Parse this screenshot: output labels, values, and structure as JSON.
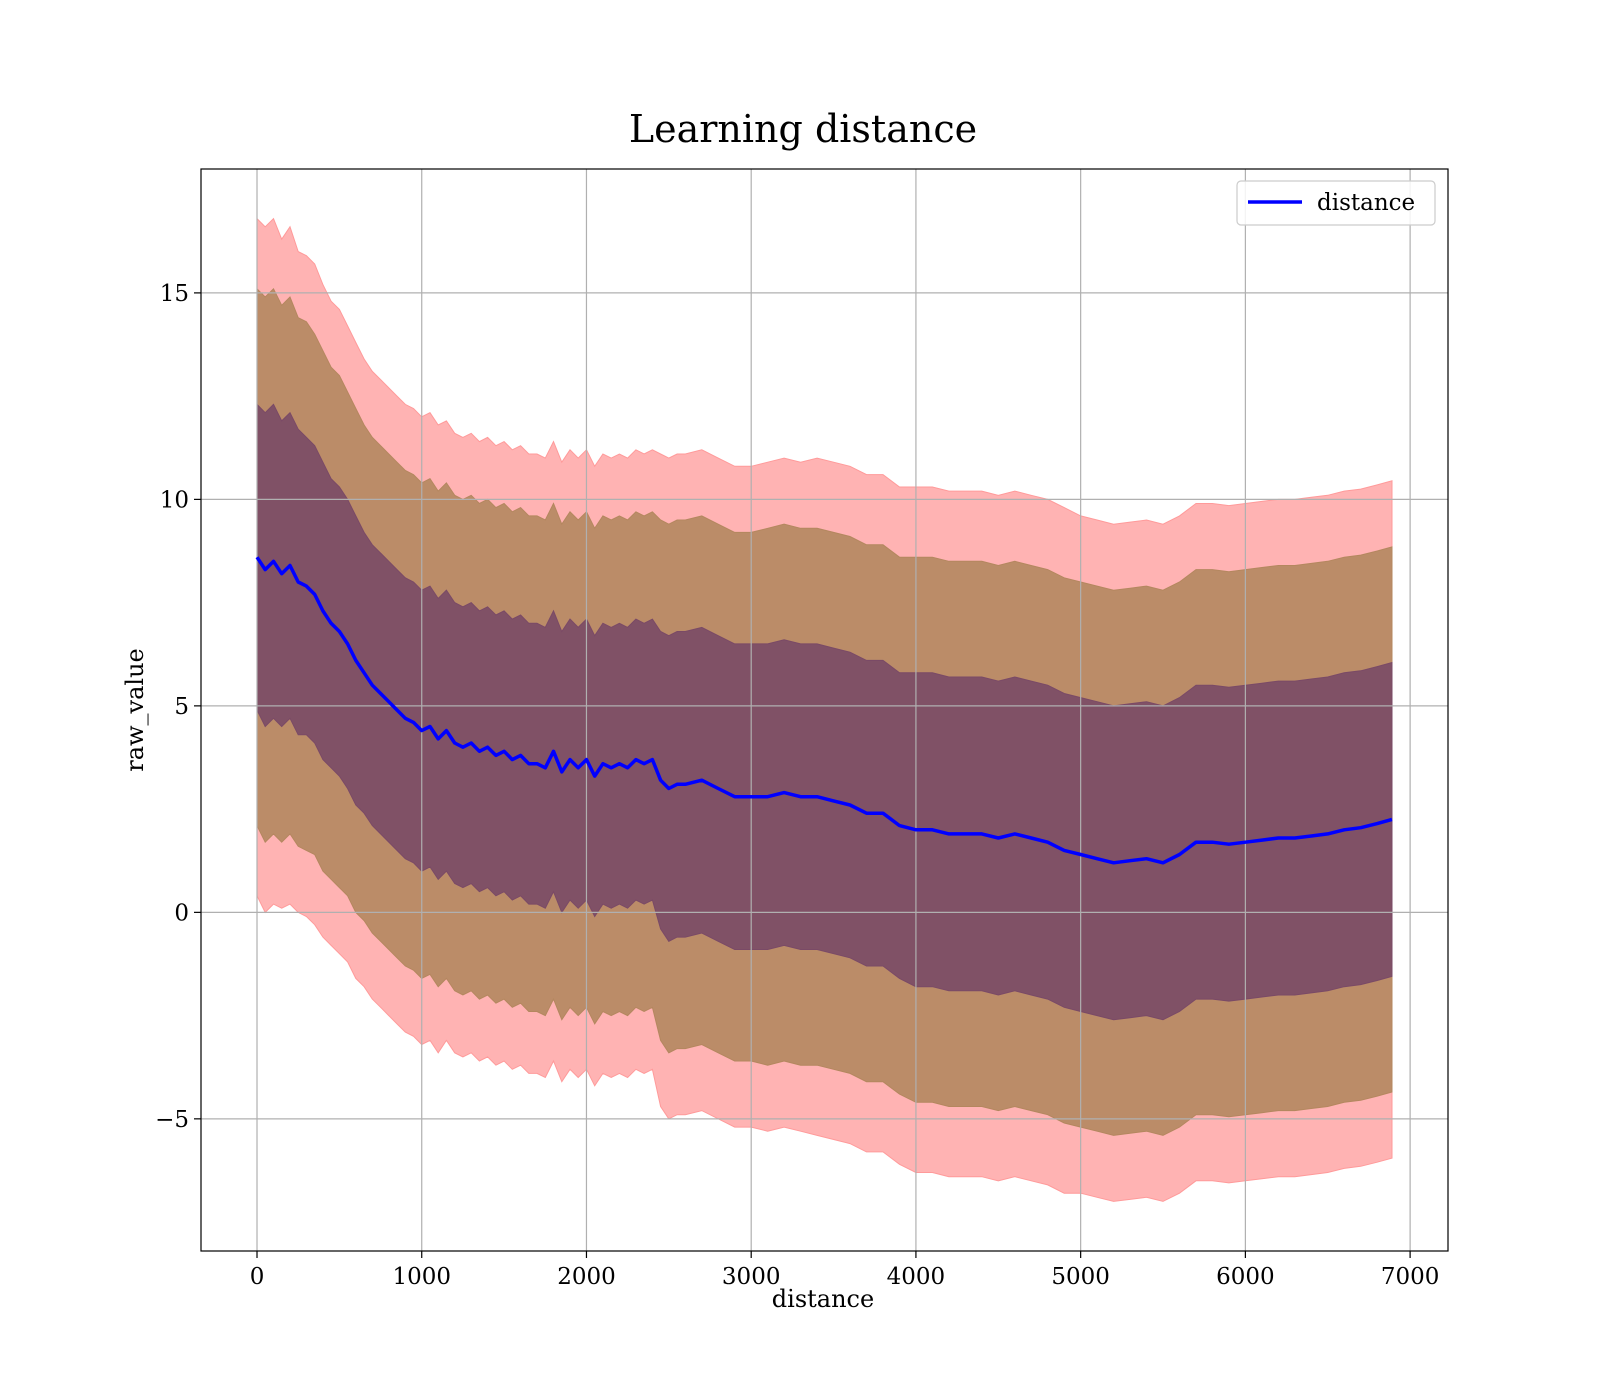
{
  "chart_data": {
    "type": "line",
    "title": "Learning distance",
    "xlabel": "distance",
    "ylabel": "raw_value",
    "xlim": [
      -340,
      7230
    ],
    "ylim": [
      -8.2,
      18.0
    ],
    "xticks": [
      0,
      1000,
      2000,
      3000,
      4000,
      5000,
      6000,
      7000
    ],
    "yticks": [
      -5,
      0,
      5,
      10,
      15
    ],
    "ytick_labels": [
      "−5",
      "0",
      "5",
      "10",
      "15"
    ],
    "grid": true,
    "legend": {
      "position": "top-right",
      "entries": [
        "distance"
      ]
    },
    "colors": {
      "mean_line": "#0000ff",
      "band_outer": "#ff9a9a",
      "band_middle": "#b4875f",
      "band_inner": "#7a4a66"
    },
    "series": [
      {
        "name": "distance",
        "x": [
          0,
          50,
          100,
          150,
          200,
          250,
          300,
          350,
          400,
          450,
          500,
          550,
          600,
          650,
          700,
          750,
          800,
          850,
          900,
          950,
          1000,
          1050,
          1100,
          1150,
          1200,
          1250,
          1300,
          1350,
          1400,
          1450,
          1500,
          1550,
          1600,
          1650,
          1700,
          1750,
          1800,
          1850,
          1900,
          1950,
          2000,
          2050,
          2100,
          2150,
          2200,
          2250,
          2300,
          2350,
          2400,
          2450,
          2500,
          2550,
          2600,
          2700,
          2800,
          2900,
          3000,
          3100,
          3200,
          3300,
          3400,
          3500,
          3600,
          3700,
          3800,
          3900,
          4000,
          4100,
          4200,
          4300,
          4400,
          4500,
          4600,
          4700,
          4800,
          4900,
          5000,
          5100,
          5200,
          5300,
          5400,
          5500,
          5600,
          5700,
          5800,
          5900,
          6000,
          6100,
          6200,
          6300,
          6400,
          6500,
          6600,
          6700,
          6800,
          6890
        ],
        "y": [
          8.6,
          8.3,
          8.5,
          8.2,
          8.4,
          8.0,
          7.9,
          7.7,
          7.3,
          7.0,
          6.8,
          6.5,
          6.1,
          5.8,
          5.5,
          5.3,
          5.1,
          4.9,
          4.7,
          4.6,
          4.4,
          4.5,
          4.2,
          4.4,
          4.1,
          4.0,
          4.1,
          3.9,
          4.0,
          3.8,
          3.9,
          3.7,
          3.8,
          3.6,
          3.6,
          3.5,
          3.9,
          3.4,
          3.7,
          3.5,
          3.7,
          3.3,
          3.6,
          3.5,
          3.6,
          3.5,
          3.7,
          3.6,
          3.7,
          3.2,
          3.0,
          3.1,
          3.1,
          3.2,
          3.0,
          2.8,
          2.8,
          2.8,
          2.9,
          2.8,
          2.8,
          2.7,
          2.6,
          2.4,
          2.4,
          2.1,
          2.0,
          2.0,
          1.9,
          1.9,
          1.9,
          1.8,
          1.9,
          1.8,
          1.7,
          1.5,
          1.4,
          1.3,
          1.2,
          1.25,
          1.3,
          1.2,
          1.4,
          1.7,
          1.7,
          1.65,
          1.7,
          1.75,
          1.8,
          1.8,
          1.85,
          1.9,
          2.0,
          2.05,
          2.15,
          2.25
        ]
      }
    ],
    "bands": [
      {
        "half_width": [
          8.2,
          8.3,
          8.3,
          8.1,
          8.2,
          8.0,
          8.0,
          8.0,
          7.9,
          7.8,
          7.8,
          7.7,
          7.7,
          7.6,
          7.6,
          7.6,
          7.6,
          7.6,
          7.6,
          7.6,
          7.6,
          7.6,
          7.6,
          7.5,
          7.5,
          7.5,
          7.5,
          7.5,
          7.5,
          7.5,
          7.5,
          7.5,
          7.5,
          7.5,
          7.5,
          7.5,
          7.5,
          7.5,
          7.5,
          7.5,
          7.5,
          7.5,
          7.5,
          7.5,
          7.5,
          7.5,
          7.5,
          7.5,
          7.5,
          7.9,
          8.0,
          8.0,
          8.0,
          8.0,
          8.0,
          8.0,
          8.0,
          8.1,
          8.1,
          8.1,
          8.2,
          8.2,
          8.2,
          8.2,
          8.2,
          8.2,
          8.3,
          8.3,
          8.3,
          8.3,
          8.3,
          8.3,
          8.3,
          8.3,
          8.3,
          8.3,
          8.2,
          8.2,
          8.2,
          8.2,
          8.2,
          8.2,
          8.2,
          8.2,
          8.2,
          8.2,
          8.2,
          8.2,
          8.2,
          8.2,
          8.2,
          8.2,
          8.2,
          8.2,
          8.2,
          8.2
        ]
      },
      {
        "half_width": [
          6.5,
          6.6,
          6.6,
          6.5,
          6.5,
          6.4,
          6.4,
          6.3,
          6.3,
          6.2,
          6.2,
          6.1,
          6.1,
          6.0,
          6.0,
          6.0,
          6.0,
          6.0,
          6.0,
          6.0,
          6.0,
          6.0,
          6.0,
          6.0,
          6.0,
          6.0,
          6.0,
          6.0,
          6.0,
          6.0,
          6.0,
          6.0,
          6.0,
          6.0,
          6.0,
          6.0,
          6.0,
          6.0,
          6.0,
          6.0,
          6.0,
          6.0,
          6.0,
          6.0,
          6.0,
          6.0,
          6.0,
          6.0,
          6.0,
          6.3,
          6.4,
          6.4,
          6.4,
          6.4,
          6.4,
          6.4,
          6.4,
          6.5,
          6.5,
          6.5,
          6.5,
          6.5,
          6.5,
          6.5,
          6.5,
          6.5,
          6.6,
          6.6,
          6.6,
          6.6,
          6.6,
          6.6,
          6.6,
          6.6,
          6.6,
          6.6,
          6.6,
          6.6,
          6.6,
          6.6,
          6.6,
          6.6,
          6.6,
          6.6,
          6.6,
          6.6,
          6.6,
          6.6,
          6.6,
          6.6,
          6.6,
          6.6,
          6.6,
          6.6,
          6.6,
          6.6
        ]
      },
      {
        "half_width": [
          3.7,
          3.8,
          3.8,
          3.7,
          3.7,
          3.7,
          3.6,
          3.6,
          3.6,
          3.5,
          3.5,
          3.5,
          3.5,
          3.4,
          3.4,
          3.4,
          3.4,
          3.4,
          3.4,
          3.4,
          3.4,
          3.4,
          3.4,
          3.4,
          3.4,
          3.4,
          3.4,
          3.4,
          3.4,
          3.4,
          3.4,
          3.4,
          3.4,
          3.4,
          3.4,
          3.4,
          3.4,
          3.4,
          3.4,
          3.4,
          3.4,
          3.4,
          3.4,
          3.4,
          3.4,
          3.4,
          3.4,
          3.4,
          3.4,
          3.6,
          3.7,
          3.7,
          3.7,
          3.7,
          3.7,
          3.7,
          3.7,
          3.7,
          3.7,
          3.7,
          3.7,
          3.7,
          3.7,
          3.7,
          3.7,
          3.7,
          3.8,
          3.8,
          3.8,
          3.8,
          3.8,
          3.8,
          3.8,
          3.8,
          3.8,
          3.8,
          3.8,
          3.8,
          3.8,
          3.8,
          3.8,
          3.8,
          3.8,
          3.8,
          3.8,
          3.8,
          3.8,
          3.8,
          3.8,
          3.8,
          3.8,
          3.8,
          3.8,
          3.8,
          3.8,
          3.8
        ]
      }
    ]
  }
}
